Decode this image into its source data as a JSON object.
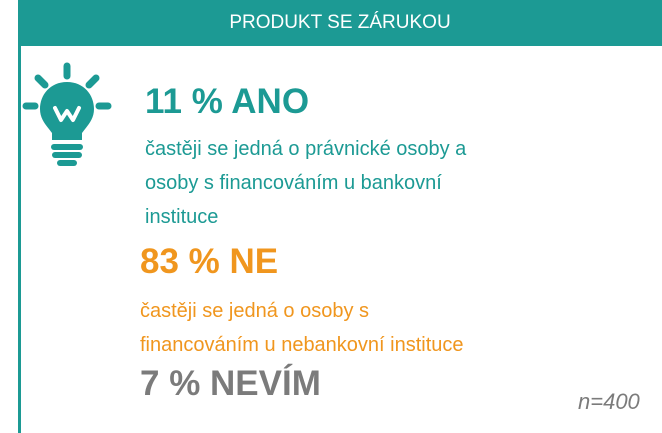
{
  "header": {
    "title": "PRODUKT SE ZÁRUKOU"
  },
  "items": [
    {
      "headline": "11 % ANO",
      "description": [
        "častěji se jedná o právnické osoby a",
        "osoby s financováním u bankovní",
        "instituce"
      ]
    },
    {
      "headline": "83 % NE",
      "description": [
        "častěji se jedná o osoby s",
        "financováním u nebankovní instituce"
      ]
    },
    {
      "headline": "7 % NEVÍM"
    }
  ],
  "note": "n=400"
}
